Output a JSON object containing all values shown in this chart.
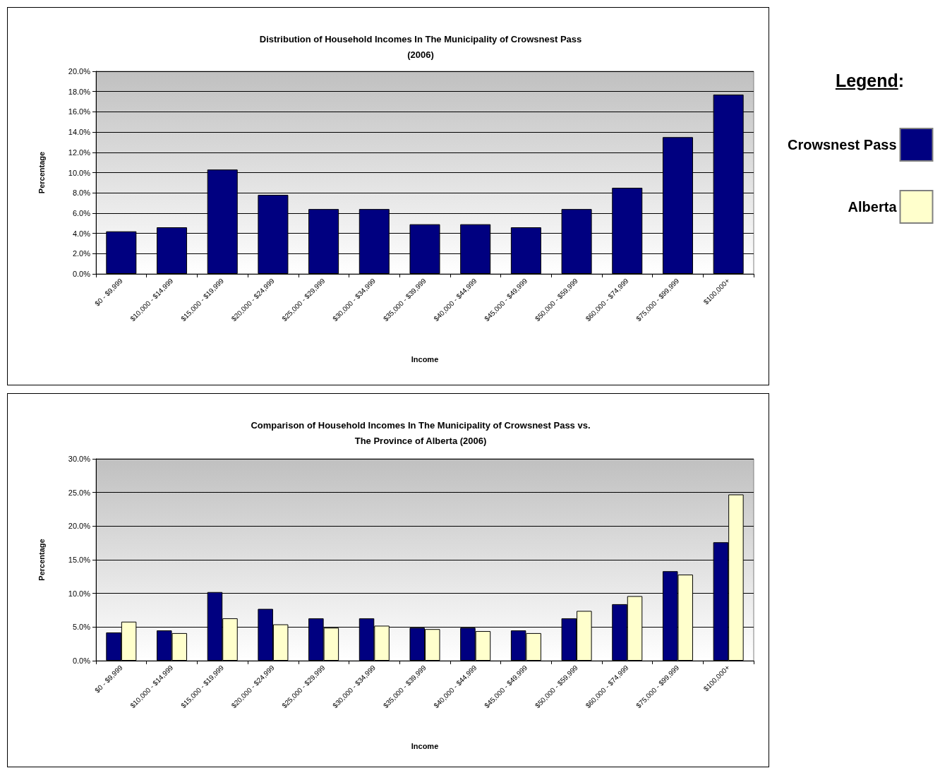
{
  "chart_data": [
    {
      "type": "bar",
      "title": "Distribution of Household Incomes In The Municipality of Crowsnest Pass\n(2006)",
      "xlabel": "Income",
      "ylabel": "Percentage",
      "categories": [
        "$0 - $9,999",
        "$10,000 - $14,999",
        "$15,000 - $19,999",
        "$20,000 - $24,999",
        "$25,000 - $29,999",
        "$30,000 - $34,999",
        "$35,000 - $39,999",
        "$40,000 - $44,999",
        "$45,000 - $49,999",
        "$50,000 - $59,999",
        "$60,000 - $74,999",
        "$75,000 - $99,999",
        "$100,000+"
      ],
      "series": [
        {
          "color": "#000080",
          "values": [
            4.2,
            4.6,
            10.3,
            7.8,
            6.4,
            6.4,
            4.9,
            4.9,
            4.6,
            6.4,
            8.5,
            13.5,
            17.7
          ]
        }
      ],
      "ylim": [
        0,
        20
      ],
      "yticks": [
        {
          "value": 0,
          "label": "0.0%"
        },
        {
          "value": 2,
          "label": "2.0%"
        },
        {
          "value": 4,
          "label": "4.0%"
        },
        {
          "value": 6,
          "label": "6.0%"
        },
        {
          "value": 8,
          "label": "8.0%"
        },
        {
          "value": 10,
          "label": "10.0%"
        },
        {
          "value": 12,
          "label": "12.0%"
        },
        {
          "value": 14,
          "label": "14.0%"
        },
        {
          "value": 16,
          "label": "16.0%"
        },
        {
          "value": 18,
          "label": "18.0%"
        },
        {
          "value": 20,
          "label": "20.0%"
        }
      ],
      "grid": "y"
    },
    {
      "type": "bar",
      "title": "Comparison of Household Incomes In The Municipality of Crowsnest Pass vs.\nThe Province of Alberta (2006)",
      "xlabel": "Income",
      "ylabel": "Percentage",
      "legend_title": "Legend:",
      "categories": [
        "$0 - $9,999",
        "$10,000 - $14,999",
        "$15,000 - $19,999",
        "$20,000 - $24,999",
        "$25,000 - $29,999",
        "$30,000 - $34,999",
        "$35,000 - $39,999",
        "$40,000 - $44,999",
        "$45,000 - $49,999",
        "$50,000 - $59,999",
        "$60,000 - $74,999",
        "$75,000 - $99,999",
        "$100,000+"
      ],
      "series": [
        {
          "name": "Crowsnest Pass",
          "color": "#000080",
          "values": [
            4.2,
            4.5,
            10.2,
            7.7,
            6.3,
            6.3,
            4.9,
            4.9,
            4.5,
            6.3,
            8.4,
            13.3,
            17.6
          ]
        },
        {
          "name": "Alberta",
          "color": "#ffffcc",
          "values": [
            5.8,
            4.1,
            6.3,
            5.4,
            4.9,
            5.2,
            4.7,
            4.4,
            4.1,
            7.4,
            9.6,
            12.8,
            24.7
          ]
        }
      ],
      "ylim": [
        0,
        30
      ],
      "yticks": [
        {
          "value": 0,
          "label": "0.0%"
        },
        {
          "value": 5,
          "label": "5.0%"
        },
        {
          "value": 10,
          "label": "10.0%"
        },
        {
          "value": 15,
          "label": "15.0%"
        },
        {
          "value": 20,
          "label": "20.0%"
        },
        {
          "value": 25,
          "label": "25.0%"
        },
        {
          "value": 30,
          "label": "30.0%"
        }
      ],
      "grid": "y",
      "legend": "right"
    }
  ]
}
